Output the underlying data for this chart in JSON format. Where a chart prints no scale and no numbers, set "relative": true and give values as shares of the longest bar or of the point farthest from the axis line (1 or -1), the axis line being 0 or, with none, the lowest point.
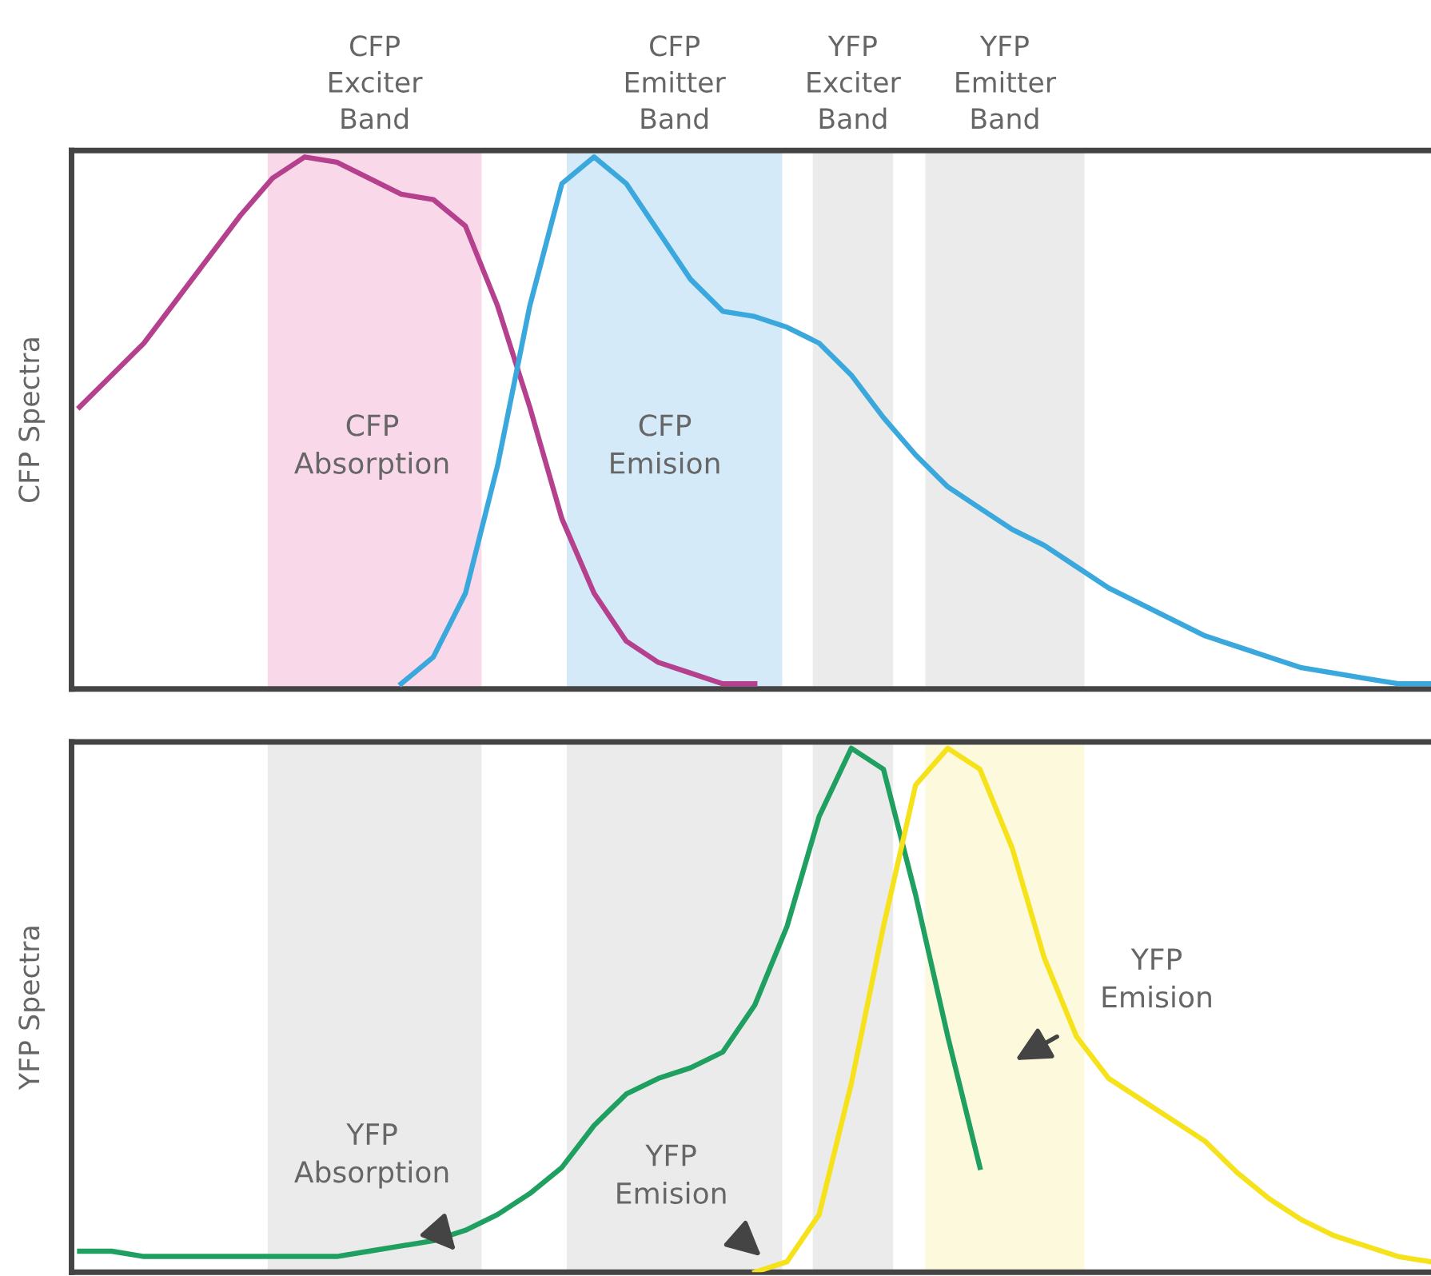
{
  "chart_data": [
    {
      "type": "line",
      "relative": true,
      "ylabel": "CFP Spectra",
      "grid": false,
      "categories": [
        null,
        null,
        null,
        null,
        null,
        null,
        null,
        null,
        null,
        null,
        null,
        null,
        null,
        null,
        null,
        null,
        null,
        null,
        null,
        null,
        null,
        null,
        null,
        null,
        null,
        null,
        null,
        null,
        null,
        null,
        null,
        null,
        null,
        null,
        null,
        null,
        null,
        null,
        null,
        null,
        null,
        null,
        null
      ],
      "series": [
        {
          "color": "#b5418e",
          "values": [
            0.53,
            0.59,
            0.65,
            0.73,
            0.81,
            0.89,
            0.96,
            1.0,
            0.99,
            0.96,
            0.93,
            0.92,
            0.87,
            0.72,
            0.53,
            0.32,
            0.18,
            0.09,
            0.05,
            0.03,
            0.01,
            0.01,
            null,
            null,
            null,
            null,
            null,
            null,
            null,
            null,
            null,
            null,
            null,
            null,
            null,
            null,
            null,
            null,
            null,
            null,
            null,
            null,
            null
          ]
        },
        {
          "color": "#3aa8dc",
          "values": [
            null,
            null,
            null,
            null,
            null,
            null,
            null,
            null,
            null,
            null,
            0.01,
            0.06,
            0.18,
            0.42,
            0.72,
            0.95,
            1.0,
            0.95,
            0.86,
            0.77,
            0.71,
            0.7,
            0.68,
            0.65,
            0.59,
            0.51,
            0.44,
            0.38,
            0.34,
            0.3,
            0.27,
            0.23,
            0.19,
            0.16,
            0.13,
            0.1,
            0.08,
            0.06,
            0.04,
            0.03,
            0.02,
            0.01,
            0.01
          ]
        }
      ],
      "annotations": [
        "CFP\nExciter\nBand",
        "CFP\nEmitter\nBand",
        "YFP\nExciter\nBand",
        "YFP\nEmitter\nBand",
        "CFP\nAbsorption",
        "CFP\nEmision"
      ]
    },
    {
      "type": "line",
      "relative": true,
      "ylabel": "YFP Spectra",
      "grid": false,
      "categories": [
        null,
        null,
        null,
        null,
        null,
        null,
        null,
        null,
        null,
        null,
        null,
        null,
        null,
        null,
        null,
        null,
        null,
        null,
        null,
        null,
        null,
        null,
        null,
        null,
        null,
        null,
        null,
        null,
        null,
        null,
        null,
        null,
        null,
        null,
        null,
        null,
        null,
        null,
        null,
        null,
        null,
        null,
        null
      ],
      "series": [
        {
          "color": "#1fa060",
          "values": [
            0.04,
            0.04,
            0.03,
            0.03,
            0.03,
            0.03,
            0.03,
            0.03,
            0.03,
            0.04,
            0.05,
            0.06,
            0.08,
            0.11,
            0.15,
            0.2,
            0.28,
            0.34,
            0.37,
            0.39,
            0.42,
            0.51,
            0.66,
            0.87,
            1.0,
            0.96,
            0.72,
            0.45,
            0.2,
            null,
            null,
            null,
            null,
            null,
            null,
            null,
            null,
            null,
            null,
            null,
            null,
            null,
            null
          ]
        },
        {
          "color": "#f5e21a",
          "values": [
            null,
            null,
            null,
            null,
            null,
            null,
            null,
            null,
            null,
            null,
            null,
            null,
            null,
            null,
            null,
            null,
            null,
            null,
            null,
            null,
            null,
            0.0,
            0.02,
            0.11,
            0.36,
            0.66,
            0.93,
            1.0,
            0.96,
            0.81,
            0.6,
            0.45,
            0.37,
            0.33,
            0.29,
            0.25,
            0.19,
            0.14,
            0.1,
            0.07,
            0.05,
            0.03,
            0.02
          ]
        }
      ],
      "annotations": [
        "YFP\nAbsorption",
        "YFP\nEmision",
        "YFP\nEmision"
      ]
    }
  ]
}
